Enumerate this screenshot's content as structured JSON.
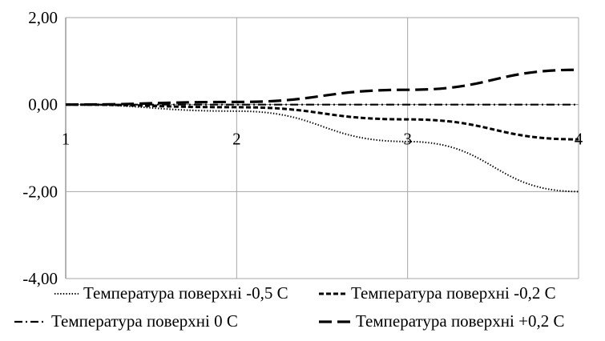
{
  "chart_data": {
    "type": "line",
    "x": [
      1,
      2,
      3,
      4
    ],
    "xlim": [
      1,
      4
    ],
    "ylim": [
      -4,
      2
    ],
    "xticks": [
      "1",
      "2",
      "3",
      "4"
    ],
    "yticks": [
      "2,00",
      "0,00",
      "-2,00",
      "-4,00"
    ],
    "ytick_values": [
      2,
      0,
      -2,
      -4
    ],
    "grid": true,
    "legend_position": "bottom",
    "series": [
      {
        "name": "Температура поверхні -0,5 С",
        "style": "dotted",
        "values": [
          0,
          -0.15,
          -0.85,
          -2.0
        ]
      },
      {
        "name": "Температура поверхні -0,2 С",
        "style": "short-dash",
        "values": [
          0,
          -0.06,
          -0.34,
          -0.8
        ]
      },
      {
        "name": "Температура поверхні 0 С",
        "style": "dash-dot",
        "values": [
          0,
          0,
          0,
          0
        ]
      },
      {
        "name": "Температура поверхні +0,2 С",
        "style": "long-dash",
        "values": [
          0,
          0.06,
          0.34,
          0.8
        ]
      }
    ],
    "colors": {
      "lines": "#000000",
      "grid": "#a6a6a6",
      "axis": "#808080"
    }
  }
}
